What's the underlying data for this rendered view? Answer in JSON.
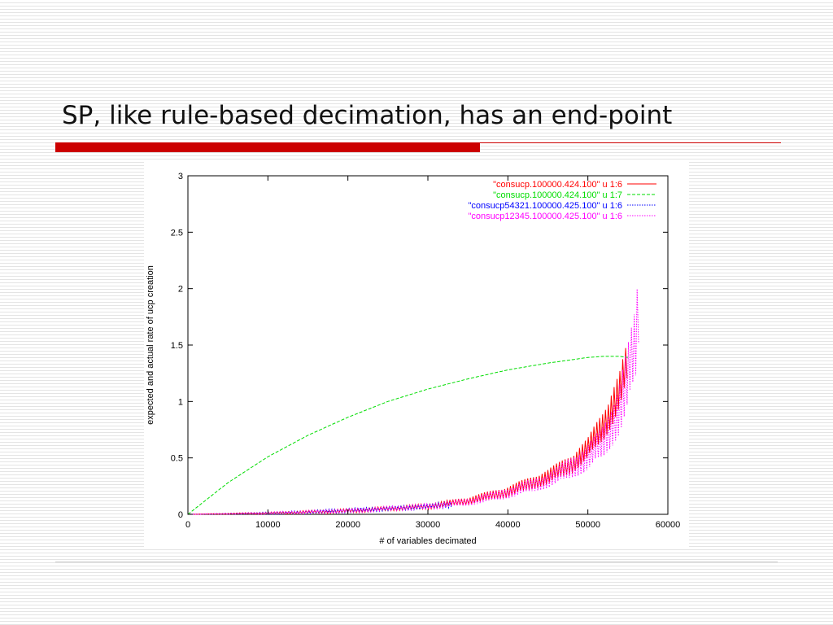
{
  "slide": {
    "title": "SP, like rule-based decimation, has an end-point"
  },
  "colors": {
    "title_bar": "#cc0000",
    "series_red": "#ff0000",
    "series_green": "#00dd00",
    "series_blue": "#0000ff",
    "series_magenta": "#ff00ff"
  },
  "chart_data": {
    "type": "line",
    "title": "",
    "xlabel": "# of variables decimated",
    "ylabel": "expected and actual rate of ucp creation",
    "xlim": [
      0,
      60000
    ],
    "ylim": [
      0,
      3
    ],
    "x_ticks": [
      "0",
      "10000",
      "20000",
      "30000",
      "40000",
      "50000",
      "60000"
    ],
    "y_ticks": [
      "0",
      "0.5",
      "1",
      "1.5",
      "2",
      "2.5",
      "3"
    ],
    "grid": false,
    "legend_position": "top-right",
    "series": [
      {
        "name": "\"consucp.100000.424.100\" u 1:6",
        "color": "#ff0000",
        "style": "solid",
        "noisy": true,
        "x": [
          0,
          5000,
          10000,
          15000,
          20000,
          25000,
          30000,
          35000,
          40000,
          45000,
          48000,
          50000,
          52000,
          53000,
          54000,
          55000
        ],
        "y": [
          0,
          0.005,
          0.01,
          0.02,
          0.03,
          0.05,
          0.07,
          0.12,
          0.2,
          0.33,
          0.45,
          0.58,
          0.8,
          0.95,
          1.1,
          1.35
        ],
        "noise": [
          0,
          0.005,
          0.01,
          0.015,
          0.02,
          0.02,
          0.025,
          0.035,
          0.05,
          0.07,
          0.09,
          0.1,
          0.14,
          0.17,
          0.18,
          0.2
        ]
      },
      {
        "name": "\"consucp.100000.424.100\" u 1:7",
        "color": "#00dd00",
        "style": "dashed",
        "noisy": false,
        "x": [
          0,
          5000,
          10000,
          15000,
          20000,
          25000,
          30000,
          35000,
          40000,
          45000,
          50000,
          52000,
          54000,
          55000
        ],
        "y": [
          0,
          0.28,
          0.51,
          0.7,
          0.86,
          1.0,
          1.11,
          1.2,
          1.28,
          1.34,
          1.39,
          1.4,
          1.4,
          1.39
        ]
      },
      {
        "name": "\"consucp54321.100000.425.100\" u 1:6",
        "color": "#0000ff",
        "style": "dotted",
        "noisy": true,
        "x": [
          0,
          5000,
          10000,
          15000,
          20000,
          25000,
          30000,
          33000
        ],
        "y": [
          0,
          0.005,
          0.01,
          0.02,
          0.035,
          0.05,
          0.07,
          0.09
        ],
        "noise": [
          0,
          0.005,
          0.01,
          0.015,
          0.02,
          0.02,
          0.025,
          0.03
        ]
      },
      {
        "name": "\"consucp12345.100000.425.100\" u 1:6",
        "color": "#ff00ff",
        "style": "dotted",
        "noisy": true,
        "x": [
          0,
          5000,
          10000,
          15000,
          20000,
          25000,
          30000,
          35000,
          40000,
          45000,
          50000,
          52000,
          54000,
          55000,
          56000,
          56500
        ],
        "y": [
          0,
          0.005,
          0.01,
          0.02,
          0.03,
          0.05,
          0.07,
          0.11,
          0.19,
          0.3,
          0.5,
          0.65,
          0.95,
          1.2,
          1.5,
          2.0
        ],
        "noise": [
          0,
          0.005,
          0.01,
          0.015,
          0.02,
          0.02,
          0.025,
          0.035,
          0.05,
          0.07,
          0.12,
          0.15,
          0.25,
          0.3,
          0.35,
          0.4
        ]
      }
    ]
  }
}
